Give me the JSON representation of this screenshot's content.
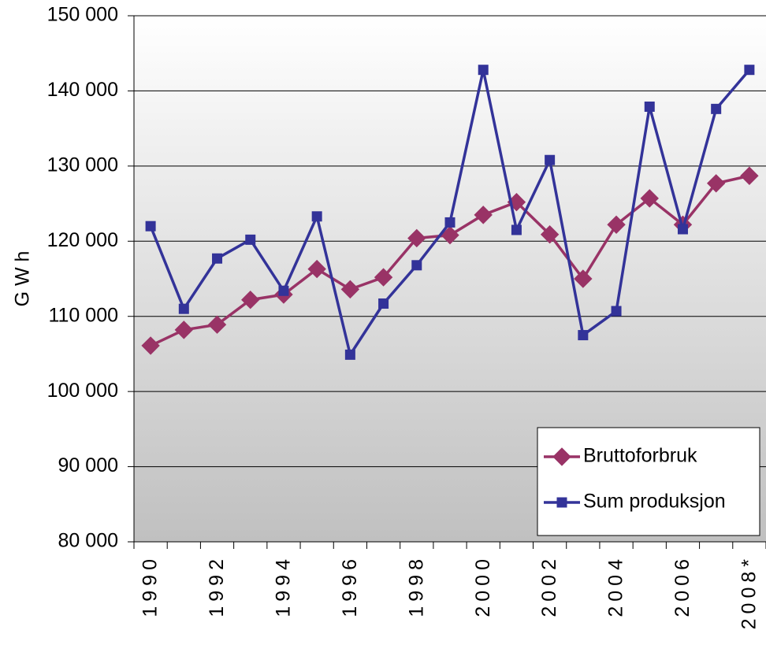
{
  "chart_data": {
    "type": "line",
    "ylabel": "G W h",
    "categories": [
      "1990",
      null,
      "1992",
      null,
      "1994",
      null,
      "1996",
      null,
      "1998",
      null,
      "2000",
      null,
      "2002",
      null,
      "2004",
      null,
      "2006",
      null,
      "2008*"
    ],
    "series": [
      {
        "name": "Bruttoforbruk",
        "color": "#993366",
        "marker": "diamond",
        "values": [
          106100,
          108200,
          108900,
          112200,
          112900,
          116300,
          113600,
          115200,
          120400,
          120800,
          123500,
          125200,
          120900,
          115000,
          122200,
          125700,
          122200,
          127700,
          128700
        ]
      },
      {
        "name": "Sum produksjon",
        "color": "#333399",
        "marker": "square",
        "values": [
          122000,
          111000,
          117700,
          120200,
          113400,
          123300,
          104900,
          111700,
          116800,
          122500,
          142800,
          121500,
          130800,
          107500,
          110700,
          137900,
          121600,
          137600,
          142800
        ]
      }
    ],
    "ylim": [
      80000,
      150000
    ],
    "yticks": [
      {
        "value": 80000,
        "label": "80 000"
      },
      {
        "value": 90000,
        "label": "90 000"
      },
      {
        "value": 100000,
        "label": "100 000"
      },
      {
        "value": 110000,
        "label": "110 000"
      },
      {
        "value": 120000,
        "label": "120 000"
      },
      {
        "value": 130000,
        "label": "130 000"
      },
      {
        "value": 140000,
        "label": "140 000"
      },
      {
        "value": 150000,
        "label": "150 000"
      }
    ],
    "grid": true,
    "legend": "lower right"
  }
}
